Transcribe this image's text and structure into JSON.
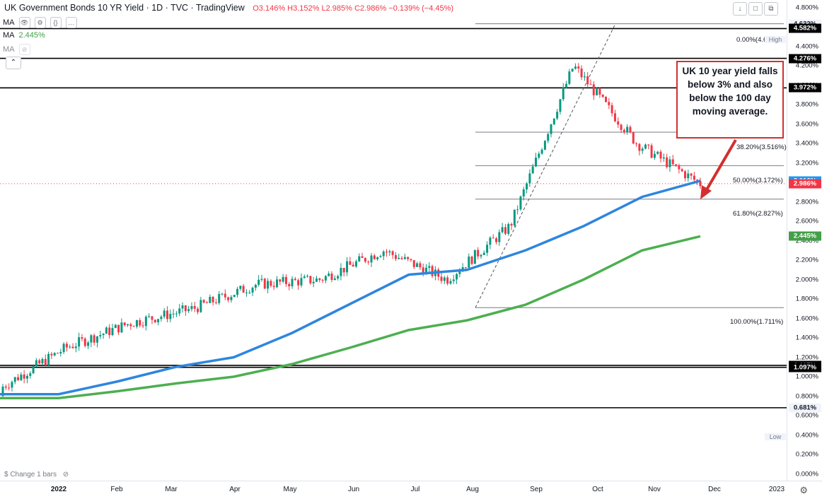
{
  "header": {
    "title": "UK Government Bonds 10 YR Yield · 1D · TVC · TradingView",
    "ohlc": {
      "o": "O3.146%",
      "h": "H3.152%",
      "l": "L2.985%",
      "c": "C2.986%",
      "chg": "−0.139% (−4.45%)"
    }
  },
  "indicators": [
    {
      "name": "MA",
      "value": ""
    },
    {
      "name": "MA",
      "value": "2.445%"
    },
    {
      "name": "MA",
      "value": ""
    }
  ],
  "price_scale": {
    "ticks": [
      "4.800%",
      "4.600%",
      "4.400%",
      "4.200%",
      "4.000%",
      "3.800%",
      "3.600%",
      "3.400%",
      "3.200%",
      "3.000%",
      "2.800%",
      "2.600%",
      "2.400%",
      "2.200%",
      "2.000%",
      "1.800%",
      "1.600%",
      "1.400%",
      "1.200%",
      "1.000%",
      "0.800%",
      "0.600%",
      "0.400%",
      "0.200%",
      "0.000%"
    ],
    "badges": [
      {
        "text": "4.632%",
        "label": "High",
        "color": "#ffffff",
        "text_color": "#131722"
      },
      {
        "text": "4.582%",
        "color": "#000000"
      },
      {
        "text": "4.276%",
        "color": "#000000"
      },
      {
        "text": "3.972%",
        "color": "#000000"
      },
      {
        "text": "3.016%",
        "color": "#2196f3"
      },
      {
        "text": "2.986%",
        "color": "#f23645"
      },
      {
        "text": "2.445%",
        "color": "#43a047"
      },
      {
        "text": "1.117%",
        "color": "#000000"
      },
      {
        "text": "1.097%",
        "color": "#000000"
      },
      {
        "text": "0.681%",
        "color": "#000000"
      },
      {
        "text": "0.681%",
        "label": "Low",
        "color": "#ffffff",
        "text_color": "#131722"
      }
    ]
  },
  "time_axis": [
    "2022",
    "Feb",
    "Mar",
    "Apr",
    "May",
    "Jun",
    "Jul",
    "Aug",
    "Sep",
    "Oct",
    "Nov",
    "Dec",
    "2023"
  ],
  "fib_levels": [
    "0.00%(4.6",
    "38.20%(3.516%)",
    "50.00%(3.172%)",
    "61.80%(2.827%)",
    "100.00%(1.711%)"
  ],
  "callout": "UK 10 year yield falls below 3% and also below the 100 day moving average.",
  "footer": {
    "change_label": "$ Change 1 bars"
  },
  "colors": {
    "up": "#089981",
    "down": "#f23645",
    "ma100": "#2e86de",
    "ma200": "#4caf50",
    "callout": "#d32f2f"
  },
  "chart_data": {
    "type": "line",
    "title": "UK Government Bonds 10 YR Yield",
    "x": [
      "2022",
      "Feb",
      "Mar",
      "Apr",
      "May",
      "Jun",
      "Jul",
      "Aug",
      "Sep",
      "Oct",
      "Nov",
      "Dec"
    ],
    "series": [
      {
        "values": [
          0.9,
          1.3,
          1.55,
          1.7,
          1.95,
          2.0,
          2.3,
          2.0,
          2.55,
          4.2,
          3.4,
          2.986
        ]
      },
      {
        "values": [
          0.82,
          0.95,
          1.1,
          1.2,
          1.45,
          1.75,
          2.05,
          2.1,
          2.3,
          2.55,
          2.85,
          3.016
        ]
      },
      {
        "values": [
          0.78,
          0.85,
          0.93,
          1.0,
          1.13,
          1.3,
          1.48,
          1.58,
          1.74,
          2.0,
          2.3,
          2.445
        ]
      }
    ],
    "horizontal_lines": [
      4.582,
      4.276,
      3.972,
      1.117,
      1.097,
      0.681
    ],
    "fib_prices": [
      4.632,
      3.516,
      3.172,
      2.827,
      1.711
    ],
    "ylim": [
      0.0,
      4.8
    ],
    "grid": false
  }
}
